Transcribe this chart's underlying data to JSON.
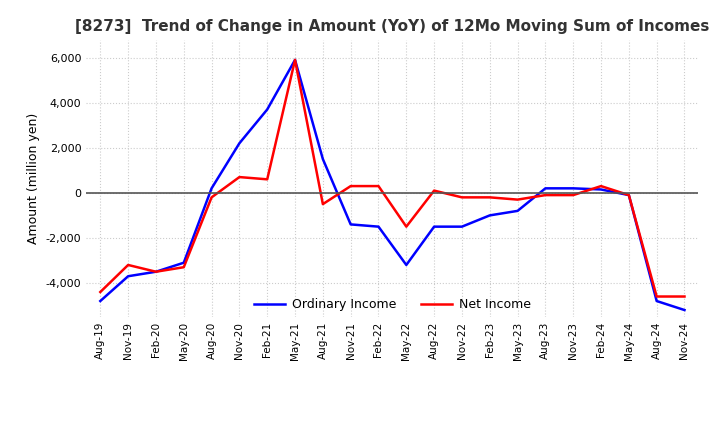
{
  "title": "[8273]  Trend of Change in Amount (YoY) of 12Mo Moving Sum of Incomes",
  "ylabel": "Amount (million yen)",
  "ylim": [
    -5500,
    6800
  ],
  "yticks": [
    -4000,
    -2000,
    0,
    2000,
    4000,
    6000
  ],
  "background_color": "#ffffff",
  "grid_color": "#cccccc",
  "grid_style": "dotted",
  "ordinary_income_color": "#0000ff",
  "net_income_color": "#ff0000",
  "x_labels": [
    "Aug-19",
    "Nov-19",
    "Feb-20",
    "May-20",
    "Aug-20",
    "Nov-20",
    "Feb-21",
    "May-21",
    "Aug-21",
    "Nov-21",
    "Feb-22",
    "May-22",
    "Aug-22",
    "Nov-22",
    "Feb-23",
    "May-23",
    "Aug-23",
    "Nov-23",
    "Feb-24",
    "May-24",
    "Aug-24",
    "Nov-24"
  ],
  "ordinary_income": [
    -4800,
    -3700,
    -3500,
    -3100,
    200,
    2200,
    3700,
    5900,
    1500,
    -1400,
    -1500,
    -3200,
    -1500,
    -1500,
    -1000,
    -800,
    200,
    200,
    150,
    -100,
    -4800,
    -5200
  ],
  "net_income": [
    -4400,
    -3200,
    -3500,
    -3300,
    -200,
    700,
    600,
    5900,
    -500,
    300,
    300,
    -1500,
    100,
    -200,
    -200,
    -300,
    -100,
    -100,
    300,
    -100,
    -4600,
    -4600
  ]
}
